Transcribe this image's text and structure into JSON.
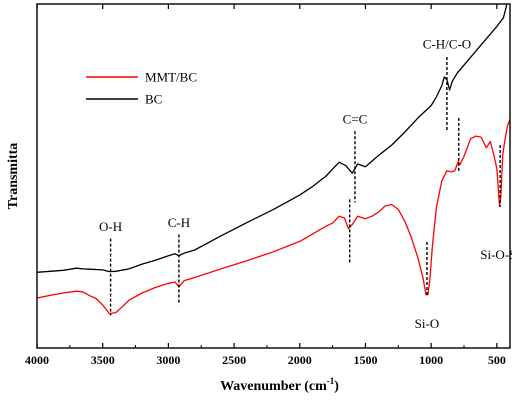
{
  "chart_data": {
    "type": "line",
    "title": "",
    "xlabel": "Wavenumber (cm",
    "xlabel_sup": "-1",
    "xlabel_close": ")",
    "ylabel": "Transmitta",
    "xlim": [
      4000,
      400
    ],
    "x_reversed": true,
    "ylim": [
      0,
      100
    ],
    "y_ticks_shown": false,
    "grid": false,
    "legend_position": "top-left",
    "x_ticks": [
      4000,
      3500,
      3000,
      2500,
      2000,
      1500,
      1000,
      500
    ],
    "x_tick_labels": [
      "4000",
      "3500",
      "3000",
      "2500",
      "2000",
      "1500",
      "1000",
      "500"
    ],
    "series": [
      {
        "name": "MMT/BC",
        "color": "#ff0000",
        "points": [
          [
            4000,
            14.5
          ],
          [
            3900,
            15.3
          ],
          [
            3800,
            16.0
          ],
          [
            3700,
            16.5
          ],
          [
            3650,
            16.3
          ],
          [
            3600,
            15.2
          ],
          [
            3550,
            14.4
          ],
          [
            3500,
            12.5
          ],
          [
            3450,
            10.0
          ],
          [
            3400,
            10.3
          ],
          [
            3350,
            12.0
          ],
          [
            3300,
            13.9
          ],
          [
            3200,
            16.0
          ],
          [
            3100,
            17.6
          ],
          [
            3000,
            18.8
          ],
          [
            2950,
            19.2
          ],
          [
            2920,
            17.8
          ],
          [
            2880,
            19.6
          ],
          [
            2800,
            20.5
          ],
          [
            2600,
            23.0
          ],
          [
            2400,
            25.4
          ],
          [
            2200,
            28.0
          ],
          [
            2000,
            31.0
          ],
          [
            1900,
            33.2
          ],
          [
            1800,
            35.4
          ],
          [
            1750,
            36.3
          ],
          [
            1700,
            38.3
          ],
          [
            1660,
            37.8
          ],
          [
            1630,
            34.7
          ],
          [
            1600,
            35.9
          ],
          [
            1560,
            38.3
          ],
          [
            1500,
            37.6
          ],
          [
            1450,
            38.3
          ],
          [
            1400,
            39.5
          ],
          [
            1350,
            41.3
          ],
          [
            1300,
            41.7
          ],
          [
            1250,
            40.3
          ],
          [
            1200,
            36.8
          ],
          [
            1150,
            32.0
          ],
          [
            1100,
            26.1
          ],
          [
            1060,
            20.0
          ],
          [
            1040,
            15.5
          ],
          [
            1025,
            15.5
          ],
          [
            1010,
            20.0
          ],
          [
            990,
            30.0
          ],
          [
            960,
            40.8
          ],
          [
            920,
            48.5
          ],
          [
            880,
            51.5
          ],
          [
            850,
            51.2
          ],
          [
            820,
            51.5
          ],
          [
            795,
            54.2
          ],
          [
            780,
            53.4
          ],
          [
            750,
            55.7
          ],
          [
            700,
            60.8
          ],
          [
            660,
            61.6
          ],
          [
            620,
            61.3
          ],
          [
            580,
            58.2
          ],
          [
            550,
            60.0
          ],
          [
            520,
            55.7
          ],
          [
            500,
            52.0
          ],
          [
            480,
            41.3
          ],
          [
            470,
            43.9
          ],
          [
            455,
            56.3
          ],
          [
            440,
            60.0
          ],
          [
            420,
            64.5
          ],
          [
            400,
            66.5
          ]
        ]
      },
      {
        "name": "BC",
        "color": "#000000",
        "points": [
          [
            4000,
            22.0
          ],
          [
            3800,
            22.6
          ],
          [
            3700,
            23.2
          ],
          [
            3650,
            23.0
          ],
          [
            3600,
            22.9
          ],
          [
            3500,
            22.7
          ],
          [
            3450,
            22.2
          ],
          [
            3400,
            22.3
          ],
          [
            3300,
            23.0
          ],
          [
            3200,
            24.4
          ],
          [
            3100,
            25.5
          ],
          [
            3000,
            26.8
          ],
          [
            2950,
            27.4
          ],
          [
            2920,
            26.8
          ],
          [
            2880,
            27.6
          ],
          [
            2800,
            28.5
          ],
          [
            2600,
            32.6
          ],
          [
            2400,
            36.5
          ],
          [
            2200,
            40.3
          ],
          [
            2000,
            44.5
          ],
          [
            1900,
            47.0
          ],
          [
            1800,
            50.0
          ],
          [
            1750,
            52.0
          ],
          [
            1700,
            54.0
          ],
          [
            1650,
            53.0
          ],
          [
            1600,
            50.8
          ],
          [
            1560,
            53.5
          ],
          [
            1500,
            52.7
          ],
          [
            1400,
            56.0
          ],
          [
            1300,
            59.0
          ],
          [
            1200,
            62.8
          ],
          [
            1100,
            66.9
          ],
          [
            1000,
            70.5
          ],
          [
            960,
            73.0
          ],
          [
            920,
            76.2
          ],
          [
            900,
            78.8
          ],
          [
            880,
            78.0
          ],
          [
            860,
            75.0
          ],
          [
            840,
            77.5
          ],
          [
            800,
            80.0
          ],
          [
            700,
            84.5
          ],
          [
            600,
            89.0
          ],
          [
            500,
            93.5
          ],
          [
            450,
            96.0
          ],
          [
            430,
            99.0
          ],
          [
            410,
            103.0
          ],
          [
            405,
            104.5
          ]
        ]
      }
    ],
    "annotations": [
      {
        "text": "O-H",
        "x": 3440,
        "y_text": 34.0,
        "y_top": 31.8,
        "y_bottom": 9.5
      },
      {
        "text": "C-H",
        "x": 2920,
        "y_text": 35.2,
        "y_top": 33.0,
        "y_bottom": 12.6
      },
      {
        "text": "C=C",
        "x": 1580,
        "y_text": 65.2,
        "y_top": 63.0,
        "y_bottom": 42.3
      },
      {
        "text": "C-H/C-O",
        "x": 880,
        "y_text": 87.0,
        "y_top": 84.6,
        "y_bottom": 63.0
      },
      {
        "text": "Si-O",
        "x": 1032,
        "y_text": 5.8,
        "y_top": 30.8,
        "y_bottom": 15.5
      },
      {
        "text": "Si-O-Si",
        "x": 475,
        "y_text": 25.8,
        "y_top": 59.0,
        "y_bottom": 41.0
      },
      {
        "text": "",
        "x": 1620,
        "y_text": 0,
        "y_top": 43.2,
        "y_bottom": 24.7
      },
      {
        "text": "",
        "x": 790,
        "y_text": 0,
        "y_top": 66.9,
        "y_bottom": 51.5
      }
    ]
  }
}
